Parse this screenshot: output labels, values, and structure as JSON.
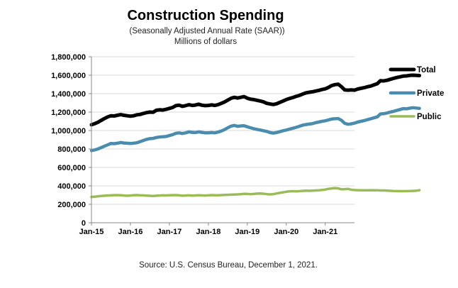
{
  "chart_data": {
    "type": "line",
    "title": "Construction Spending",
    "subtitle": "(Seasonally Adjusted Annual Rate (SAAR))",
    "units": "Millions of dollars",
    "source": "Source: U.S. Census Bureau, December 1, 2021.",
    "ylim": [
      0,
      1800000
    ],
    "ytick_values": [
      0,
      200000,
      400000,
      600000,
      800000,
      1000000,
      1200000,
      1400000,
      1600000,
      1800000
    ],
    "ytick_labels": [
      "0",
      "200,000",
      "400,000",
      "600,000",
      "800,000",
      "1,000,000",
      "1,200,000",
      "1,400,000",
      "1,600,000",
      "1,800,000"
    ],
    "xtick_labels": [
      "Jan-15",
      "Jan-16",
      "Jan-17",
      "Jan-18",
      "Jan-19",
      "Jan-20",
      "Jan-21"
    ],
    "x_start": "2015-01",
    "x_end": "2021-10",
    "grid": "horizontal",
    "legend_position": "right",
    "series": [
      {
        "name": "Total",
        "color": "#000000",
        "values": [
          1062000,
          1075000,
          1090000,
          1110000,
          1130000,
          1148000,
          1160000,
          1158000,
          1165000,
          1172000,
          1165000,
          1160000,
          1155000,
          1160000,
          1170000,
          1175000,
          1185000,
          1195000,
          1200000,
          1198000,
          1220000,
          1225000,
          1222000,
          1230000,
          1240000,
          1250000,
          1270000,
          1275000,
          1262000,
          1270000,
          1280000,
          1272000,
          1276000,
          1285000,
          1275000,
          1270000,
          1272000,
          1278000,
          1272000,
          1280000,
          1295000,
          1310000,
          1330000,
          1350000,
          1360000,
          1352000,
          1360000,
          1368000,
          1350000,
          1340000,
          1335000,
          1328000,
          1320000,
          1310000,
          1295000,
          1288000,
          1282000,
          1290000,
          1305000,
          1320000,
          1335000,
          1348000,
          1358000,
          1370000,
          1380000,
          1395000,
          1408000,
          1415000,
          1420000,
          1428000,
          1435000,
          1445000,
          1452000,
          1468000,
          1488000,
          1498000,
          1502000,
          1475000,
          1440000,
          1438000,
          1440000,
          1438000,
          1450000,
          1458000,
          1465000,
          1475000,
          1482000,
          1495000,
          1508000,
          1540000,
          1538000,
          1545000,
          1555000,
          1565000,
          1575000,
          1582000,
          1590000,
          1592000,
          1598000,
          1600000,
          1598000,
          1596000
        ]
      },
      {
        "name": "Private",
        "color": "#4a8cae",
        "values": [
          782000,
          790000,
          800000,
          815000,
          830000,
          845000,
          860000,
          858000,
          862000,
          870000,
          865000,
          862000,
          860000,
          862000,
          868000,
          880000,
          892000,
          905000,
          912000,
          915000,
          925000,
          930000,
          932000,
          935000,
          945000,
          955000,
          970000,
          975000,
          968000,
          975000,
          985000,
          980000,
          978000,
          985000,
          980000,
          975000,
          975000,
          978000,
          975000,
          983000,
          995000,
          1010000,
          1030000,
          1048000,
          1055000,
          1045000,
          1050000,
          1052000,
          1040000,
          1030000,
          1020000,
          1012000,
          1005000,
          998000,
          990000,
          978000,
          972000,
          978000,
          988000,
          998000,
          1005000,
          1015000,
          1025000,
          1035000,
          1045000,
          1058000,
          1065000,
          1070000,
          1075000,
          1085000,
          1092000,
          1100000,
          1105000,
          1115000,
          1125000,
          1128000,
          1130000,
          1110000,
          1078000,
          1068000,
          1072000,
          1080000,
          1092000,
          1100000,
          1108000,
          1118000,
          1128000,
          1138000,
          1148000,
          1180000,
          1182000,
          1190000,
          1200000,
          1208000,
          1218000,
          1228000,
          1238000,
          1235000,
          1242000,
          1248000,
          1244000,
          1240000
        ]
      },
      {
        "name": "Public",
        "color": "#9bbb59",
        "values": [
          280000,
          283000,
          286000,
          290000,
          293000,
          295000,
          297000,
          299000,
          300000,
          298000,
          295000,
          292000,
          295000,
          298000,
          300000,
          298000,
          296000,
          294000,
          292000,
          290000,
          293000,
          295000,
          297000,
          296000,
          298000,
          299000,
          300000,
          297000,
          293000,
          295000,
          297000,
          294000,
          296000,
          298000,
          296000,
          295000,
          297000,
          300000,
          298000,
          298000,
          300000,
          302000,
          303000,
          305000,
          306000,
          308000,
          310000,
          314000,
          312000,
          310000,
          312000,
          316000,
          318000,
          315000,
          310000,
          308000,
          310000,
          318000,
          324000,
          330000,
          336000,
          340000,
          342000,
          340000,
          342000,
          345000,
          348000,
          346000,
          348000,
          350000,
          352000,
          356000,
          360000,
          368000,
          372000,
          376000,
          372000,
          362000,
          365000,
          368000,
          358000,
          355000,
          353000,
          352000,
          352000,
          352000,
          353000,
          352000,
          352000,
          350000,
          350000,
          348000,
          346000,
          344000,
          343000,
          342000,
          342000,
          343000,
          344000,
          345000,
          347000,
          352000
        ]
      }
    ]
  }
}
